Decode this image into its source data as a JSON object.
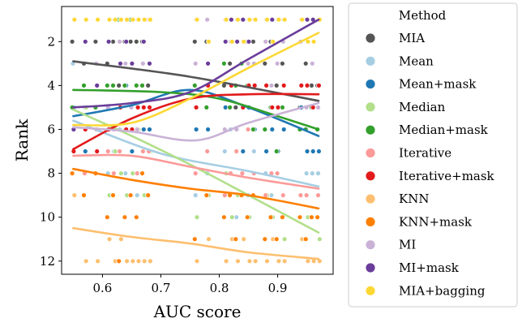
{
  "chart_data": {
    "type": "scatter",
    "xlabel": "AUC score",
    "ylabel": "Rank",
    "xlim": [
      0.53,
      0.995
    ],
    "ylim": [
      12.6,
      0.4
    ],
    "y_inverted": true,
    "xticks": [
      0.6,
      0.7,
      0.8,
      0.9
    ],
    "yticks": [
      2,
      4,
      6,
      8,
      10,
      12
    ],
    "xtick_labels": [
      "0.6",
      "0.7",
      "0.8",
      "0.9"
    ],
    "ytick_labels": [
      "2",
      "4",
      "6",
      "8",
      "10",
      "12"
    ],
    "grid": false,
    "legend": {
      "title": "Method",
      "placement": "outside-right"
    },
    "auc_columns": [
      0.55,
      0.57,
      0.59,
      0.61,
      0.62,
      0.63,
      0.64,
      0.65,
      0.66,
      0.67,
      0.68,
      0.76,
      0.78,
      0.81,
      0.82,
      0.83,
      0.84,
      0.85,
      0.86,
      0.88,
      0.89,
      0.9,
      0.91,
      0.94,
      0.95,
      0.96,
      0.97
    ],
    "series": [
      {
        "name": "MIA",
        "color": "#555555",
        "ranks": [
          2,
          3,
          2,
          3,
          2,
          4,
          2,
          2,
          2,
          2,
          4,
          2,
          2,
          4,
          3,
          5,
          3,
          2,
          2,
          3,
          2,
          4,
          3,
          5,
          3,
          4,
          4
        ],
        "trend": [
          [
            0.55,
            2.9
          ],
          [
            0.75,
            3.6
          ],
          [
            0.97,
            4.7
          ]
        ]
      },
      {
        "name": "Mean",
        "color": "#a6cee3",
        "ranks": [
          3,
          5,
          6,
          8,
          7,
          6,
          8,
          7,
          9,
          7,
          6,
          9,
          8,
          7,
          6,
          10,
          8,
          9,
          7,
          8,
          9,
          8,
          10,
          9,
          8,
          8,
          8
        ],
        "trend": [
          [
            0.55,
            5.6
          ],
          [
            0.7,
            7.1
          ],
          [
            0.85,
            7.9
          ],
          [
            0.97,
            8.6
          ]
        ]
      },
      {
        "name": "Mean+mask",
        "color": "#1f78b4",
        "ranks": [
          5,
          7,
          6,
          5,
          6,
          5,
          4,
          7,
          5,
          6,
          6,
          6,
          6,
          5,
          4,
          6,
          7,
          5,
          6,
          7,
          6,
          7,
          6,
          5,
          7,
          7,
          7
        ],
        "trend": [
          [
            0.55,
            5.4
          ],
          [
            0.65,
            4.9
          ],
          [
            0.75,
            4.2
          ],
          [
            0.85,
            5.0
          ],
          [
            0.97,
            6.3
          ]
        ]
      },
      {
        "name": "Median",
        "color": "#b2df8a",
        "ranks": [
          1,
          5,
          6,
          9,
          7,
          8,
          9,
          8,
          6,
          9,
          7,
          10,
          9,
          8,
          10,
          9,
          11,
          10,
          12,
          9,
          10,
          12,
          11,
          11,
          10,
          12,
          11
        ],
        "trend": [
          [
            0.55,
            5.1
          ],
          [
            0.65,
            6.3
          ],
          [
            0.75,
            7.6
          ],
          [
            0.85,
            9.0
          ],
          [
            0.97,
            10.7
          ]
        ]
      },
      {
        "name": "Median+mask",
        "color": "#33a02c",
        "ranks": [
          5,
          4,
          5,
          4,
          4,
          1,
          4,
          1,
          4,
          4,
          1,
          4,
          5,
          3,
          5,
          4,
          3,
          4,
          6,
          6,
          5,
          7,
          5,
          6,
          6,
          5,
          6
        ],
        "trend": [
          [
            0.55,
            4.2
          ],
          [
            0.7,
            4.3
          ],
          [
            0.8,
            4.6
          ],
          [
            0.9,
            5.4
          ],
          [
            0.97,
            6.0
          ]
        ]
      },
      {
        "name": "Iterative",
        "color": "#fb9a99",
        "ranks": [
          7,
          8,
          6,
          7,
          8,
          7,
          6,
          9,
          8,
          7,
          7,
          8,
          7,
          9,
          8,
          7,
          8,
          6,
          8,
          9,
          8,
          8,
          9,
          9,
          9,
          10,
          9
        ],
        "trend": [
          [
            0.55,
            7.2
          ],
          [
            0.65,
            7.2
          ],
          [
            0.75,
            7.7
          ],
          [
            0.85,
            8.2
          ],
          [
            0.97,
            8.7
          ]
        ]
      },
      {
        "name": "Iterative+mask",
        "color": "#e31a1c",
        "ranks": [
          7,
          6,
          7,
          6,
          6,
          5,
          6,
          6,
          5,
          5,
          5,
          5,
          4,
          1,
          4,
          1,
          5,
          4,
          4,
          4,
          5,
          5,
          4,
          4,
          4,
          5,
          4
        ],
        "trend": [
          [
            0.55,
            6.9
          ],
          [
            0.65,
            5.5
          ],
          [
            0.75,
            4.6
          ],
          [
            0.85,
            4.4
          ],
          [
            0.97,
            4.4
          ]
        ]
      },
      {
        "name": "KNN",
        "color": "#fdbf6f",
        "ranks": [
          9,
          12,
          12,
          11,
          12,
          11,
          12,
          12,
          12,
          12,
          12,
          12,
          11,
          12,
          11,
          12,
          11,
          12,
          12,
          12,
          11,
          12,
          12,
          11,
          12,
          12,
          12
        ],
        "trend": [
          [
            0.55,
            10.5
          ],
          [
            0.65,
            10.9
          ],
          [
            0.75,
            11.2
          ],
          [
            0.85,
            11.6
          ],
          [
            0.97,
            11.9
          ]
        ]
      },
      {
        "name": "KNN+mask",
        "color": "#ff7f00",
        "ranks": [
          8,
          9,
          8,
          10,
          9,
          12,
          10,
          9,
          10,
          8,
          9,
          11,
          9,
          10,
          9,
          11,
          9,
          10,
          9,
          11,
          10,
          11,
          10,
          10,
          11,
          10,
          10
        ],
        "trend": [
          [
            0.55,
            7.8
          ],
          [
            0.65,
            8.3
          ],
          [
            0.75,
            8.7
          ],
          [
            0.85,
            9.0
          ],
          [
            0.97,
            9.6
          ]
        ]
      },
      {
        "name": "MI",
        "color": "#cab2d6",
        "ranks": [
          6,
          2,
          3,
          5,
          6,
          2,
          3,
          5,
          6,
          3,
          1,
          3,
          1,
          6,
          2,
          6,
          1,
          3,
          3,
          2,
          4,
          3,
          2,
          2,
          5,
          3,
          5
        ],
        "trend": [
          [
            0.55,
            5.9
          ],
          [
            0.65,
            6.1
          ],
          [
            0.76,
            6.5
          ],
          [
            0.85,
            5.7
          ],
          [
            0.97,
            4.8
          ]
        ]
      },
      {
        "name": "MI+mask",
        "color": "#6a3d9a",
        "ranks": [
          6,
          2,
          4,
          2,
          1,
          3,
          2,
          3,
          1,
          2,
          3,
          1,
          3,
          2,
          1,
          2,
          1,
          2,
          1,
          1,
          1,
          1,
          1,
          1,
          1,
          1,
          1
        ],
        "trend": [
          [
            0.55,
            5.0
          ],
          [
            0.65,
            4.8
          ],
          [
            0.75,
            4.3
          ],
          [
            0.85,
            2.8
          ],
          [
            0.97,
            1.0
          ]
        ]
      },
      {
        "name": "MIA+bagging",
        "color": "#fdd835",
        "ranks": [
          1,
          1,
          1,
          1,
          1,
          1,
          1,
          1,
          1,
          1,
          1,
          1,
          2,
          1,
          2,
          1,
          2,
          1,
          1,
          1,
          2,
          1,
          1,
          1,
          2,
          2,
          1
        ],
        "trend": [
          [
            0.55,
            5.8
          ],
          [
            0.65,
            5.7
          ],
          [
            0.75,
            4.6
          ],
          [
            0.85,
            3.2
          ],
          [
            0.97,
            1.6
          ]
        ]
      }
    ]
  }
}
